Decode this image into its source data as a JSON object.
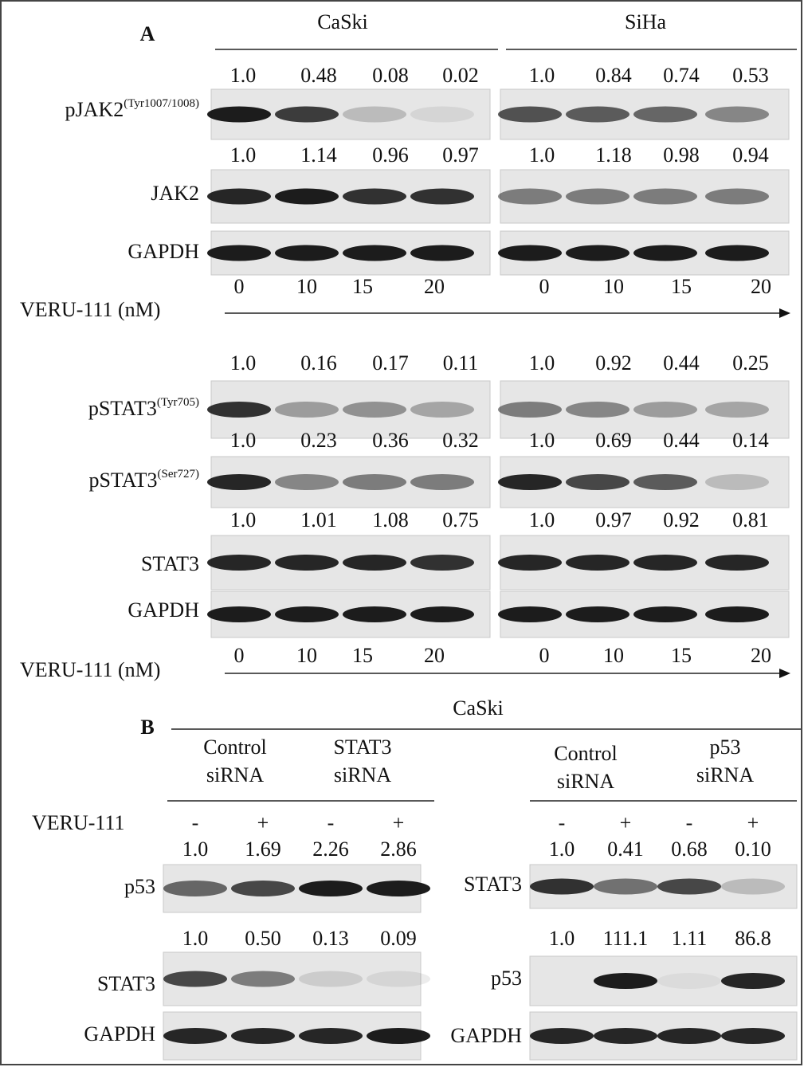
{
  "panel_a": {
    "label": "A",
    "cell_lines": [
      "CaSki",
      "SiHa"
    ],
    "sections": [
      {
        "rows": [
          {
            "label": {
              "text": "pJAK2",
              "sup": "(Tyr1007/1008)"
            },
            "values": [
              [
                "1.0",
                "0.48",
                "0.08",
                "0.02"
              ],
              [
                "1.0",
                "0.84",
                "0.74",
                "0.53"
              ]
            ]
          },
          {
            "label": {
              "text": "JAK2"
            },
            "values": [
              [
                "1.0",
                "1.14",
                "0.96",
                "0.97"
              ],
              [
                "1.0",
                "1.18",
                "0.98",
                "0.94"
              ]
            ]
          },
          {
            "label": {
              "text": "GAPDH"
            }
          }
        ],
        "dose_label": "VERU-111  (nM)",
        "doses": [
          [
            "0",
            "10",
            "15",
            "20"
          ],
          [
            "0",
            "10",
            "15",
            "20"
          ]
        ]
      },
      {
        "rows": [
          {
            "label": {
              "text": "pSTAT3",
              "sup": "(Tyr705)"
            },
            "values": [
              [
                "1.0",
                "0.16",
                "0.17",
                "0.11"
              ],
              [
                "1.0",
                "0.92",
                "0.44",
                "0.25"
              ]
            ]
          },
          {
            "label": {
              "text": "pSTAT3",
              "sup": "(Ser727)"
            },
            "values": [
              [
                "1.0",
                "0.23",
                "0.36",
                "0.32"
              ],
              [
                "1.0",
                "0.69",
                "0.44",
                "0.14"
              ]
            ]
          },
          {
            "label": {
              "text": "STAT3"
            },
            "values": [
              [
                "1.0",
                "1.01",
                "1.08",
                "0.75"
              ],
              [
                "1.0",
                "0.97",
                "0.92",
                "0.81"
              ]
            ]
          },
          {
            "label": {
              "text": "GAPDH"
            }
          }
        ],
        "dose_label": "VERU-111  (nM)",
        "doses": [
          [
            "0",
            "10",
            "15",
            "20"
          ],
          [
            "0",
            "10",
            "15",
            "20"
          ]
        ]
      }
    ]
  },
  "panel_b": {
    "label": "B",
    "cell_line": "CaSki",
    "treatment_label": "VERU-111",
    "groups": [
      {
        "conditions": [
          [
            "Control",
            "siRNA"
          ],
          [
            "STAT3",
            "siRNA"
          ]
        ],
        "signs": [
          "-",
          "+",
          "-",
          "+"
        ],
        "rows": [
          {
            "label": "p53",
            "values": [
              "1.0",
              "1.69",
              "2.26",
              "2.86"
            ]
          },
          {
            "label": "STAT3",
            "values": [
              "1.0",
              "0.50",
              "0.13",
              "0.09"
            ]
          },
          {
            "label": "GAPDH"
          }
        ]
      },
      {
        "conditions": [
          [
            "Control",
            "siRNA"
          ],
          [
            "p53",
            "siRNA"
          ]
        ],
        "signs": [
          "-",
          "+",
          "-",
          "+"
        ],
        "rows": [
          {
            "label": "STAT3",
            "values": [
              "1.0",
              "0.41",
              "0.68",
              "0.10"
            ]
          },
          {
            "label": "p53",
            "values": [
              "1.0",
              "111.1",
              "1.11",
              "86.8"
            ]
          },
          {
            "label": "GAPDH"
          }
        ]
      }
    ]
  }
}
